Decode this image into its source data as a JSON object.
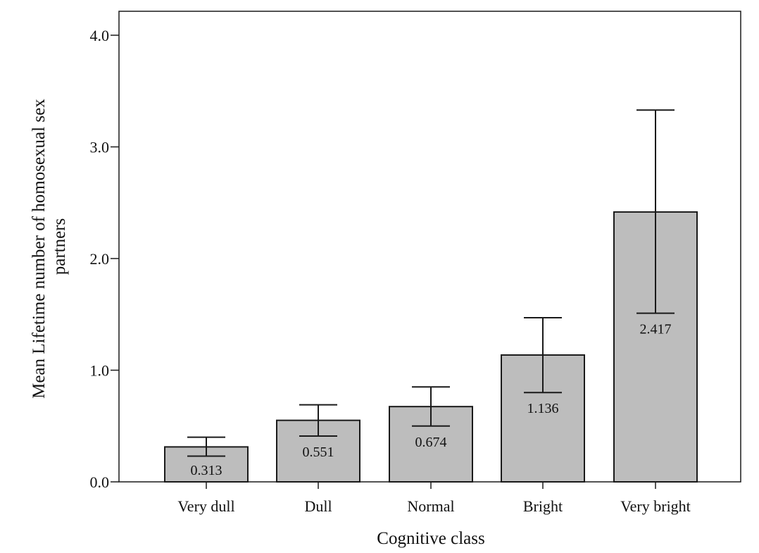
{
  "chart_data": {
    "type": "bar",
    "categories": [
      "Very dull",
      "Dull",
      "Normal",
      "Bright",
      "Very bright"
    ],
    "values": [
      0.313,
      0.551,
      0.674,
      1.136,
      2.417
    ],
    "data_labels": [
      "0.313",
      "0.551",
      "0.674",
      "1.136",
      "2.417"
    ],
    "error_low": [
      0.23,
      0.41,
      0.5,
      0.8,
      1.51
    ],
    "error_high": [
      0.4,
      0.69,
      0.85,
      1.47,
      3.33
    ],
    "xlabel": "Cognitive class",
    "ylabel_lines": [
      "Mean Lifetime number of homosexual sex",
      "partners"
    ],
    "ylim": [
      0,
      4.2
    ],
    "yticks": [
      0,
      1,
      2,
      3,
      4
    ],
    "ytick_labels": [
      "0.0",
      "1.0",
      "2.0",
      "3.0",
      "4.0"
    ],
    "grid": false,
    "bar_color": "#bdbdbd",
    "bar_edge_color": "#1a1a1a"
  }
}
